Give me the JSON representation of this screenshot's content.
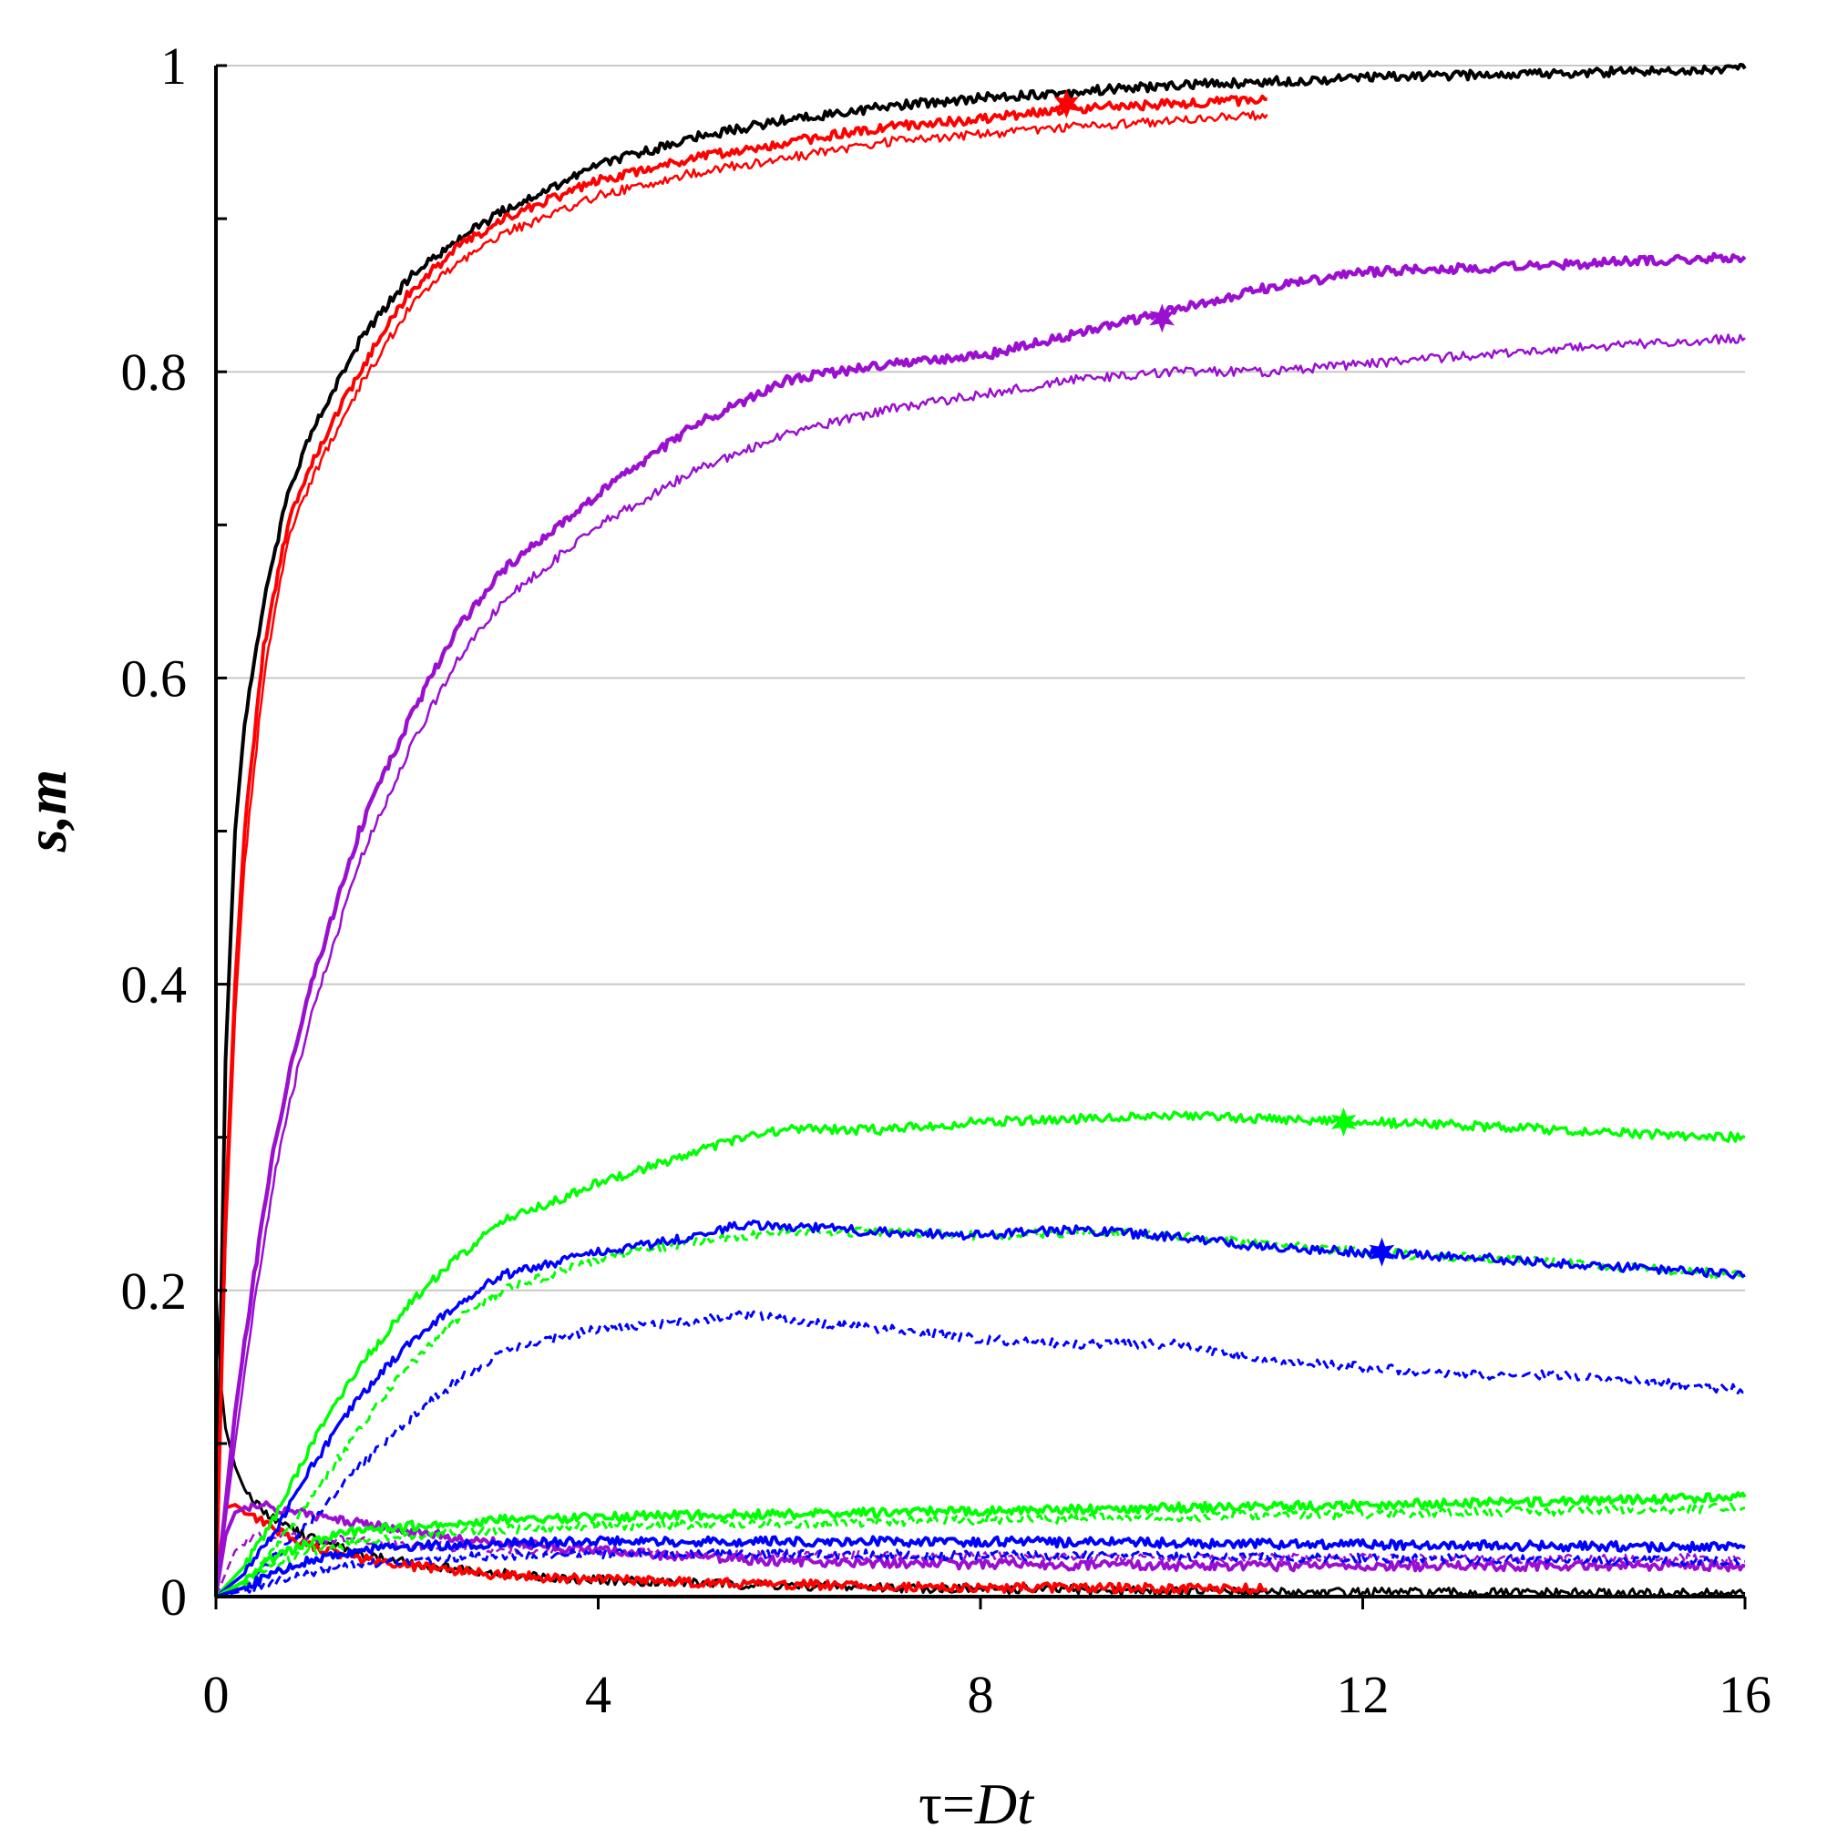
{
  "chart_data": {
    "type": "line",
    "title": "",
    "xlabel_parts": {
      "prefix": "τ=",
      "italic": "Dt"
    },
    "ylabel": "s,m",
    "xlim": [
      0,
      16
    ],
    "ylim": [
      0,
      1
    ],
    "x_ticks": [
      "0",
      "4",
      "8",
      "12",
      "16"
    ],
    "y_ticks": [
      "0",
      "0.2",
      "0.4",
      "0.6",
      "0.8",
      "1"
    ],
    "grid": "horizontal",
    "legend": "none",
    "series": [
      {
        "color": "#000000",
        "style": "solid",
        "width": 4,
        "x": [
          0,
          0.1,
          0.2,
          0.3,
          0.5,
          0.75,
          1,
          1.5,
          2,
          2.5,
          3,
          4,
          5,
          6,
          7,
          8,
          10,
          12,
          14,
          16
        ],
        "y": [
          0,
          0.35,
          0.5,
          0.57,
          0.65,
          0.72,
          0.76,
          0.82,
          0.86,
          0.885,
          0.905,
          0.935,
          0.953,
          0.965,
          0.973,
          0.979,
          0.987,
          0.992,
          0.995,
          0.998
        ]
      },
      {
        "color": "#000000",
        "style": "solid",
        "width": 3,
        "x": [
          0,
          0.05,
          0.1,
          0.2,
          0.3,
          0.5,
          0.75,
          1,
          1.5,
          2,
          3,
          4,
          6,
          8,
          11,
          16
        ],
        "y": [
          0.2,
          0.14,
          0.11,
          0.085,
          0.07,
          0.055,
          0.045,
          0.038,
          0.028,
          0.022,
          0.015,
          0.011,
          0.007,
          0.005,
          0.003,
          0.002
        ]
      },
      {
        "color": "#ff0000",
        "style": "solid",
        "width": 4,
        "marker_x": 8.9,
        "marker_y": 0.975,
        "x": [
          0,
          0.1,
          0.2,
          0.3,
          0.5,
          0.75,
          1,
          1.5,
          2,
          2.5,
          3,
          4,
          5,
          6,
          7,
          8,
          9,
          10,
          11
        ],
        "y": [
          0,
          0.25,
          0.4,
          0.5,
          0.62,
          0.7,
          0.74,
          0.8,
          0.85,
          0.88,
          0.9,
          0.925,
          0.94,
          0.95,
          0.96,
          0.965,
          0.972,
          0.975,
          0.978
        ]
      },
      {
        "color": "#ff0000",
        "style": "solid",
        "width": 2.5,
        "x": [
          0,
          0.1,
          0.2,
          0.3,
          0.5,
          0.75,
          1,
          1.5,
          2,
          2.5,
          3,
          4,
          5,
          6,
          7,
          8,
          9,
          10,
          11
        ],
        "y": [
          0,
          0.23,
          0.38,
          0.48,
          0.6,
          0.69,
          0.73,
          0.79,
          0.84,
          0.87,
          0.89,
          0.915,
          0.93,
          0.94,
          0.95,
          0.955,
          0.96,
          0.964,
          0.968
        ]
      },
      {
        "color": "#ff0000",
        "style": "solid",
        "width": 4,
        "x": [
          0,
          0.1,
          0.2,
          0.4,
          0.6,
          0.8,
          1,
          1.5,
          2,
          3,
          4,
          6,
          8,
          11
        ],
        "y": [
          0,
          0.058,
          0.06,
          0.052,
          0.045,
          0.038,
          0.033,
          0.025,
          0.02,
          0.014,
          0.011,
          0.008,
          0.006,
          0.005
        ]
      },
      {
        "color": "#9a0fd0",
        "style": "solid",
        "width": 4.5,
        "marker_x": 9.9,
        "marker_y": 0.835,
        "x": [
          0,
          0.1,
          0.2,
          0.4,
          0.6,
          0.8,
          1,
          1.5,
          2,
          2.5,
          3,
          4,
          5,
          6,
          7,
          8,
          9,
          10,
          11,
          12,
          14,
          16
        ],
        "y": [
          0,
          0.06,
          0.12,
          0.21,
          0.29,
          0.35,
          0.4,
          0.5,
          0.57,
          0.63,
          0.67,
          0.72,
          0.765,
          0.795,
          0.805,
          0.81,
          0.825,
          0.84,
          0.855,
          0.865,
          0.87,
          0.875
        ]
      },
      {
        "color": "#9a0fd0",
        "style": "solid",
        "width": 2.5,
        "x": [
          0,
          0.1,
          0.2,
          0.4,
          0.6,
          0.8,
          1,
          1.5,
          2,
          2.5,
          3,
          4,
          5,
          6,
          7,
          8,
          9,
          10,
          11,
          12,
          14,
          16
        ],
        "y": [
          0,
          0.05,
          0.1,
          0.19,
          0.27,
          0.33,
          0.38,
          0.48,
          0.55,
          0.61,
          0.65,
          0.7,
          0.735,
          0.76,
          0.775,
          0.785,
          0.795,
          0.8,
          0.8,
          0.805,
          0.815,
          0.822
        ]
      },
      {
        "color": "#9a0fd0",
        "style": "solid",
        "width": 4,
        "x": [
          0,
          0.1,
          0.2,
          0.4,
          0.6,
          1,
          1.5,
          2,
          3,
          4,
          5,
          6,
          8,
          10,
          12,
          14,
          16
        ],
        "y": [
          0,
          0.04,
          0.055,
          0.06,
          0.058,
          0.053,
          0.048,
          0.043,
          0.035,
          0.03,
          0.026,
          0.023,
          0.021,
          0.02,
          0.02,
          0.02,
          0.02
        ]
      },
      {
        "color": "#9a0fd0",
        "style": "dashed",
        "width": 2.5,
        "x": [
          0,
          0.2,
          0.4,
          0.6,
          1,
          2,
          3,
          4,
          6,
          8,
          10,
          12,
          14,
          16
        ],
        "y": [
          0,
          0.03,
          0.04,
          0.04,
          0.038,
          0.034,
          0.031,
          0.029,
          0.027,
          0.026,
          0.025,
          0.025,
          0.025,
          0.025
        ]
      },
      {
        "color": "#00ff00",
        "style": "solid",
        "width": 3.5,
        "marker_x": 11.8,
        "marker_y": 0.31,
        "x": [
          0,
          0.3,
          0.6,
          1,
          1.5,
          2,
          2.5,
          3,
          4,
          5,
          5.5,
          6,
          7,
          8,
          9,
          10,
          11,
          12,
          13,
          14,
          15,
          16
        ],
        "y": [
          0,
          0.02,
          0.05,
          0.1,
          0.15,
          0.19,
          0.22,
          0.245,
          0.27,
          0.29,
          0.3,
          0.305,
          0.305,
          0.31,
          0.312,
          0.314,
          0.312,
          0.31,
          0.308,
          0.305,
          0.302,
          0.3
        ]
      },
      {
        "color": "#00ff00",
        "style": "dashed",
        "width": 3,
        "x": [
          0,
          0.3,
          0.6,
          1,
          1.5,
          2,
          2.5,
          3,
          4,
          5,
          6,
          7,
          8,
          9,
          10,
          11,
          12,
          13,
          14,
          15,
          16
        ],
        "y": [
          0,
          0.01,
          0.03,
          0.065,
          0.11,
          0.15,
          0.18,
          0.2,
          0.22,
          0.232,
          0.238,
          0.238,
          0.236,
          0.238,
          0.236,
          0.23,
          0.225,
          0.222,
          0.218,
          0.214,
          0.21
        ]
      },
      {
        "color": "#0000ff",
        "style": "solid",
        "width": 3.5,
        "marker_x": 12.2,
        "marker_y": 0.225,
        "x": [
          0,
          0.3,
          0.6,
          1,
          1.5,
          2,
          2.5,
          3,
          4,
          5,
          5.5,
          6,
          7,
          8,
          9,
          10,
          11,
          12,
          13,
          14,
          15,
          16
        ],
        "y": [
          0,
          0.015,
          0.04,
          0.085,
          0.13,
          0.165,
          0.19,
          0.21,
          0.225,
          0.235,
          0.243,
          0.242,
          0.238,
          0.236,
          0.24,
          0.235,
          0.228,
          0.225,
          0.222,
          0.218,
          0.214,
          0.21
        ]
      },
      {
        "color": "#0000ff",
        "style": "dashed",
        "width": 3,
        "x": [
          0,
          0.3,
          0.6,
          1,
          1.5,
          2,
          2.5,
          3,
          4,
          5,
          5.5,
          6,
          7,
          8,
          9,
          10,
          11,
          12,
          13,
          14,
          15,
          16
        ],
        "y": [
          0,
          0.008,
          0.025,
          0.05,
          0.085,
          0.115,
          0.14,
          0.16,
          0.175,
          0.18,
          0.185,
          0.18,
          0.175,
          0.168,
          0.165,
          0.165,
          0.155,
          0.15,
          0.145,
          0.145,
          0.14,
          0.135
        ]
      },
      {
        "color": "#00ff00",
        "style": "solid",
        "width": 4,
        "x": [
          0,
          0.3,
          0.6,
          1,
          1.5,
          2,
          3,
          4,
          6,
          8,
          10,
          12,
          14,
          16
        ],
        "y": [
          0,
          0.01,
          0.025,
          0.036,
          0.043,
          0.046,
          0.05,
          0.052,
          0.054,
          0.056,
          0.058,
          0.06,
          0.062,
          0.065
        ]
      },
      {
        "color": "#00ff00",
        "style": "dashed",
        "width": 3,
        "x": [
          0,
          0.3,
          0.6,
          1,
          1.5,
          2,
          3,
          4,
          6,
          8,
          10,
          12,
          14,
          16
        ],
        "y": [
          0,
          0.008,
          0.02,
          0.03,
          0.036,
          0.04,
          0.044,
          0.046,
          0.048,
          0.05,
          0.052,
          0.054,
          0.056,
          0.058
        ]
      },
      {
        "color": "#0000ff",
        "style": "solid",
        "width": 4,
        "x": [
          0,
          0.3,
          0.6,
          1,
          1.5,
          2,
          3,
          4,
          6,
          8,
          10,
          12,
          14,
          16
        ],
        "y": [
          0,
          0.006,
          0.015,
          0.024,
          0.03,
          0.033,
          0.035,
          0.036,
          0.036,
          0.036,
          0.035,
          0.034,
          0.033,
          0.032
        ]
      },
      {
        "color": "#0000ff",
        "style": "dashed",
        "width": 3,
        "x": [
          0,
          0.3,
          0.6,
          1,
          1.5,
          2,
          3,
          4,
          6,
          8,
          10,
          12,
          14,
          16
        ],
        "y": [
          0,
          0.004,
          0.01,
          0.016,
          0.021,
          0.024,
          0.027,
          0.028,
          0.028,
          0.027,
          0.026,
          0.025,
          0.024,
          0.023
        ]
      }
    ]
  }
}
